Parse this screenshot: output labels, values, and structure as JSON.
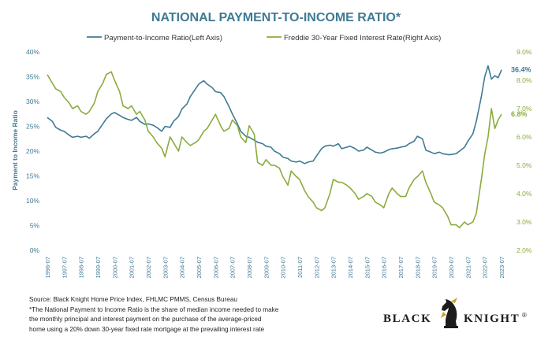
{
  "chart_data": {
    "type": "line",
    "title": "NATIONAL PAYMENT-TO-INCOME RATIO*",
    "ylabel_left": "Payment to Income Ratio",
    "ylim_left": [
      0,
      40
    ],
    "ylim_right": [
      2.0,
      9.0
    ],
    "yticks_left": [
      "0%",
      "5%",
      "10%",
      "15%",
      "20%",
      "25%",
      "30%",
      "35%",
      "40%"
    ],
    "yticks_right": [
      "2.0%",
      "3.0%",
      "4.0%",
      "5.0%",
      "6.0%",
      "7.0%",
      "8.0%",
      "9.0%"
    ],
    "xlim": [
      1996.5,
      2023.5
    ],
    "xticks": [
      "1996-07",
      "1997-07",
      "1998-07",
      "1999-07",
      "2000-07",
      "2001-07",
      "2002-07",
      "2003-07",
      "2004-07",
      "2005-07",
      "2006-07",
      "2007-07",
      "2008-07",
      "2009-07",
      "2010-07",
      "2011-07",
      "2012-07",
      "2013-07",
      "2014-07",
      "2015-07",
      "2016-07",
      "2017-07",
      "2018-07",
      "2019-07",
      "2020-07",
      "2021-07",
      "2022-07",
      "2023-07"
    ],
    "grid": false,
    "legend_position": "top",
    "series": [
      {
        "name": "Payment-to-Income Ratio(Left Axis)",
        "axis": "left",
        "color": "#3f7a94",
        "end_label": "36.4%",
        "x": [
          1996.5,
          1996.8,
          1997.0,
          1997.3,
          1997.5,
          1997.8,
          1998.0,
          1998.3,
          1998.5,
          1998.8,
          1999.0,
          1999.3,
          1999.5,
          1999.8,
          2000.0,
          2000.3,
          2000.5,
          2000.8,
          2001.0,
          2001.3,
          2001.5,
          2001.8,
          2002.0,
          2002.3,
          2002.5,
          2002.8,
          2003.0,
          2003.3,
          2003.5,
          2003.8,
          2004.0,
          2004.3,
          2004.5,
          2004.8,
          2005.0,
          2005.3,
          2005.5,
          2005.8,
          2006.0,
          2006.3,
          2006.5,
          2006.8,
          2007.0,
          2007.3,
          2007.5,
          2007.8,
          2008.0,
          2008.3,
          2008.5,
          2008.8,
          2009.0,
          2009.3,
          2009.5,
          2009.8,
          2010.0,
          2010.3,
          2010.5,
          2010.8,
          2011.0,
          2011.3,
          2011.5,
          2011.8,
          2012.0,
          2012.3,
          2012.5,
          2012.8,
          2013.0,
          2013.3,
          2013.5,
          2013.8,
          2014.0,
          2014.3,
          2014.5,
          2014.8,
          2015.0,
          2015.3,
          2015.5,
          2015.8,
          2016.0,
          2016.3,
          2016.5,
          2016.8,
          2017.0,
          2017.3,
          2017.5,
          2017.8,
          2018.0,
          2018.3,
          2018.5,
          2018.8,
          2019.0,
          2019.3,
          2019.5,
          2019.8,
          2020.0,
          2020.3,
          2020.5,
          2020.8,
          2021.0,
          2021.3,
          2021.5,
          2021.8,
          2022.0,
          2022.3,
          2022.5,
          2022.7,
          2022.9,
          2023.1,
          2023.3,
          2023.5
        ],
        "values": [
          26.8,
          26.0,
          24.8,
          24.2,
          24.0,
          23.2,
          22.8,
          23.0,
          22.8,
          23.0,
          22.6,
          23.5,
          24.0,
          25.5,
          26.5,
          27.5,
          27.8,
          27.2,
          26.8,
          26.4,
          26.2,
          26.8,
          26.0,
          25.4,
          25.5,
          25.2,
          24.8,
          24.0,
          25.0,
          24.8,
          26.0,
          27.0,
          28.5,
          29.5,
          31.0,
          32.5,
          33.5,
          34.2,
          33.5,
          32.8,
          32.0,
          31.8,
          31.0,
          29.0,
          27.5,
          25.5,
          24.0,
          23.0,
          22.8,
          22.2,
          21.8,
          21.5,
          21.0,
          20.8,
          20.0,
          19.5,
          18.8,
          18.5,
          18.0,
          17.8,
          18.0,
          17.5,
          17.8,
          18.0,
          19.0,
          20.5,
          21.0,
          21.2,
          21.0,
          21.5,
          20.5,
          20.8,
          21.0,
          20.5,
          20.0,
          20.2,
          20.8,
          20.2,
          19.8,
          19.6,
          19.8,
          20.3,
          20.5,
          20.6,
          20.8,
          21.0,
          21.5,
          22.0,
          23.0,
          22.5,
          20.2,
          19.8,
          19.5,
          19.8,
          19.5,
          19.3,
          19.3,
          19.5,
          20.0,
          20.8,
          22.0,
          23.5,
          26.0,
          31.0,
          35.0,
          37.2,
          34.5,
          35.2,
          34.8,
          36.4
        ]
      },
      {
        "name": "Freddie 30-Year Fixed Interest Rate(Right Axis)",
        "axis": "right",
        "color": "#8aac3d",
        "end_label": "6.8%",
        "x": [
          1996.5,
          1996.8,
          1997.0,
          1997.3,
          1997.5,
          1997.8,
          1998.0,
          1998.3,
          1998.5,
          1998.8,
          1999.0,
          1999.3,
          1999.5,
          1999.8,
          2000.0,
          2000.3,
          2000.5,
          2000.8,
          2001.0,
          2001.3,
          2001.5,
          2001.8,
          2002.0,
          2002.3,
          2002.5,
          2002.8,
          2003.0,
          2003.3,
          2003.5,
          2003.8,
          2004.0,
          2004.3,
          2004.5,
          2004.8,
          2005.0,
          2005.3,
          2005.5,
          2005.8,
          2006.0,
          2006.3,
          2006.5,
          2006.8,
          2007.0,
          2007.3,
          2007.5,
          2007.8,
          2008.0,
          2008.3,
          2008.5,
          2008.8,
          2009.0,
          2009.3,
          2009.5,
          2009.8,
          2010.0,
          2010.3,
          2010.5,
          2010.8,
          2011.0,
          2011.3,
          2011.5,
          2011.8,
          2012.0,
          2012.3,
          2012.5,
          2012.8,
          2013.0,
          2013.3,
          2013.5,
          2013.8,
          2014.0,
          2014.3,
          2014.5,
          2014.8,
          2015.0,
          2015.3,
          2015.5,
          2015.8,
          2016.0,
          2016.3,
          2016.5,
          2016.8,
          2017.0,
          2017.3,
          2017.5,
          2017.8,
          2018.0,
          2018.3,
          2018.5,
          2018.8,
          2019.0,
          2019.3,
          2019.5,
          2019.8,
          2020.0,
          2020.3,
          2020.5,
          2020.8,
          2021.0,
          2021.3,
          2021.5,
          2021.8,
          2022.0,
          2022.3,
          2022.5,
          2022.7,
          2022.9,
          2023.1,
          2023.3,
          2023.5
        ],
        "values": [
          8.2,
          7.9,
          7.7,
          7.6,
          7.4,
          7.2,
          7.0,
          7.1,
          6.9,
          6.8,
          6.9,
          7.2,
          7.6,
          7.9,
          8.2,
          8.3,
          8.0,
          7.6,
          7.1,
          7.0,
          7.1,
          6.8,
          6.9,
          6.6,
          6.2,
          6.0,
          5.8,
          5.6,
          5.3,
          6.0,
          5.8,
          5.5,
          6.0,
          5.8,
          5.7,
          5.8,
          5.9,
          6.2,
          6.3,
          6.6,
          6.8,
          6.4,
          6.2,
          6.3,
          6.6,
          6.4,
          6.0,
          5.8,
          6.4,
          6.1,
          5.1,
          5.0,
          5.2,
          5.0,
          5.0,
          4.9,
          4.6,
          4.3,
          4.8,
          4.6,
          4.5,
          4.1,
          3.9,
          3.7,
          3.5,
          3.4,
          3.5,
          4.0,
          4.5,
          4.4,
          4.4,
          4.3,
          4.2,
          4.0,
          3.8,
          3.9,
          4.0,
          3.9,
          3.7,
          3.6,
          3.5,
          4.0,
          4.2,
          4.0,
          3.9,
          3.9,
          4.2,
          4.5,
          4.6,
          4.8,
          4.4,
          4.0,
          3.7,
          3.6,
          3.5,
          3.2,
          2.9,
          2.9,
          2.8,
          3.0,
          2.9,
          3.0,
          3.3,
          4.5,
          5.4,
          6.0,
          7.0,
          6.3,
          6.6,
          6.8
        ]
      }
    ]
  },
  "source": {
    "line1": "Source: Black Knight Home Price Index, FHLMC PMMS, Census Bureau",
    "line2": "*The National Payment to Income Ratio is the share of median income needed to make",
    "line3": "the monthly principal and interest payment on the purchase of the average-priced",
    "line4": "home using a 20% down 30-year fixed rate mortgage at the prevailing interest rate"
  },
  "logo": {
    "text_left": "BLACK",
    "text_right": "KNIGHT",
    "mark": "®",
    "icon": "knight-chess-icon"
  }
}
